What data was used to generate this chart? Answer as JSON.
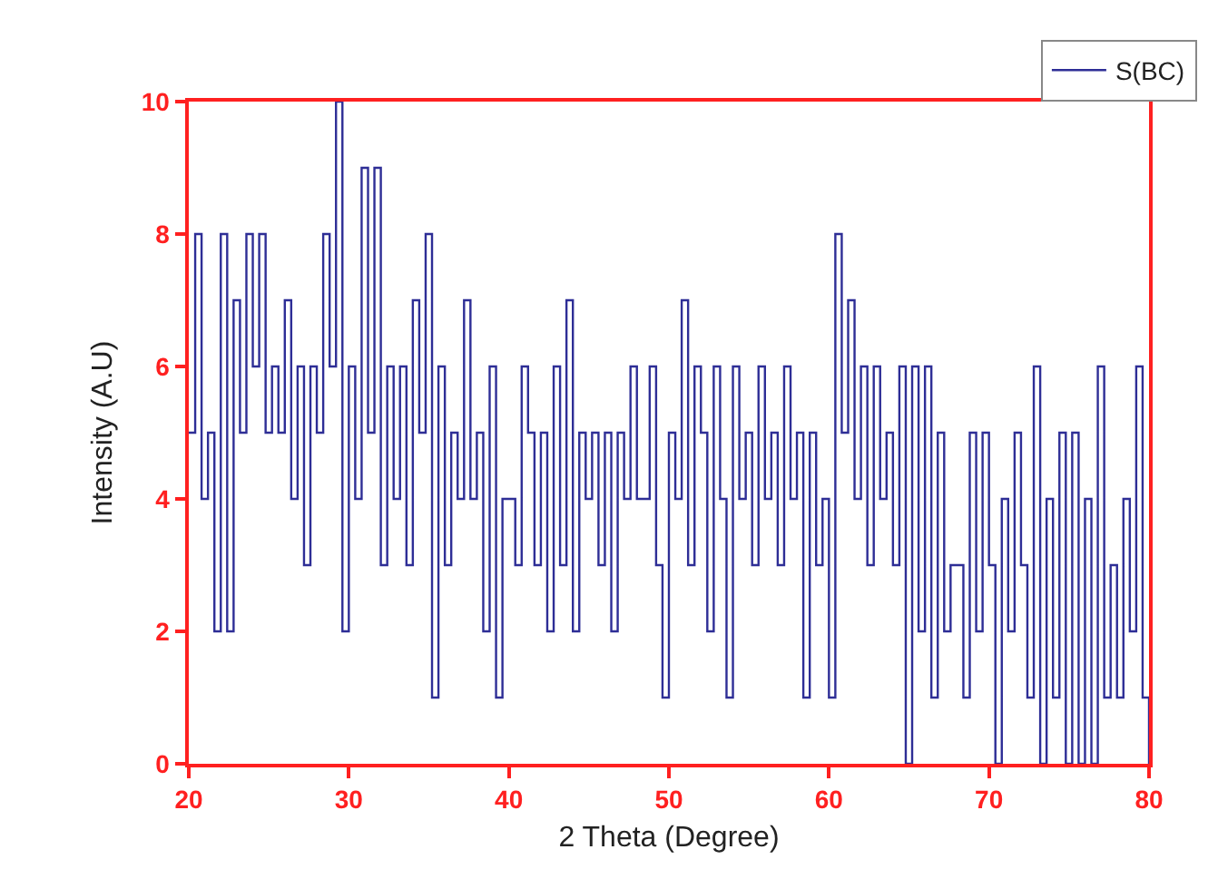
{
  "chart_data": {
    "type": "step",
    "xlabel": "2 Theta (Degree)",
    "ylabel": "Intensity (A.U)",
    "x": [
      20.0,
      20.4,
      20.8,
      21.2,
      21.6,
      22.0,
      22.4,
      22.8,
      23.2,
      23.6,
      24.0,
      24.4,
      24.8,
      25.2,
      25.6,
      26.0,
      26.4,
      26.8,
      27.2,
      27.6,
      28.0,
      28.4,
      28.8,
      29.2,
      29.6,
      30.0,
      30.4,
      30.8,
      31.2,
      31.6,
      32.0,
      32.4,
      32.8,
      33.2,
      33.6,
      34.0,
      34.4,
      34.8,
      35.2,
      35.6,
      36.0,
      36.4,
      36.8,
      37.2,
      37.6,
      38.0,
      38.4,
      38.8,
      39.2,
      39.6,
      40.0,
      40.4,
      40.8,
      41.2,
      41.6,
      42.0,
      42.4,
      42.8,
      43.2,
      43.6,
      44.0,
      44.4,
      44.8,
      45.2,
      45.6,
      46.0,
      46.4,
      46.8,
      47.2,
      47.6,
      48.0,
      48.4,
      48.8,
      49.2,
      49.6,
      50.0,
      50.4,
      50.8,
      51.2,
      51.6,
      52.0,
      52.4,
      52.8,
      53.2,
      53.6,
      54.0,
      54.4,
      54.8,
      55.2,
      55.6,
      56.0,
      56.4,
      56.8,
      57.2,
      57.6,
      58.0,
      58.4,
      58.8,
      59.2,
      59.6,
      60.0,
      60.4,
      60.8,
      61.2,
      61.6,
      62.0,
      62.4,
      62.8,
      63.2,
      63.6,
      64.0,
      64.4,
      64.8,
      65.2,
      65.6,
      66.0,
      66.4,
      66.8,
      67.2,
      67.6,
      68.0,
      68.4,
      68.8,
      69.2,
      69.6,
      70.0,
      70.4,
      70.8,
      71.2,
      71.6,
      72.0,
      72.4,
      72.8,
      73.2,
      73.6,
      74.0,
      74.4,
      74.8,
      75.2,
      75.6,
      76.0,
      76.4,
      76.8,
      77.2,
      77.6,
      78.0,
      78.4,
      78.8,
      79.2,
      79.6,
      80.0
    ],
    "series": [
      {
        "name": "S(BC)",
        "color": "#2e2e96",
        "values": [
          5,
          8,
          4,
          5,
          2,
          8,
          2,
          7,
          5,
          8,
          6,
          8,
          5,
          6,
          5,
          7,
          4,
          6,
          3,
          6,
          5,
          8,
          6,
          10,
          2,
          6,
          4,
          9,
          5,
          9,
          3,
          6,
          4,
          6,
          3,
          7,
          5,
          8,
          1,
          6,
          3,
          5,
          4,
          7,
          4,
          5,
          2,
          6,
          1,
          4,
          4,
          3,
          6,
          5,
          3,
          5,
          2,
          6,
          3,
          7,
          2,
          5,
          4,
          5,
          3,
          5,
          2,
          5,
          4,
          6,
          4,
          4,
          6,
          3,
          1,
          5,
          4,
          7,
          3,
          6,
          5,
          2,
          6,
          4,
          1,
          6,
          4,
          5,
          3,
          6,
          4,
          5,
          3,
          6,
          4,
          5,
          1,
          5,
          3,
          4,
          1,
          8,
          5,
          7,
          4,
          6,
          3,
          6,
          4,
          5,
          3,
          6,
          0,
          6,
          2,
          6,
          1,
          5,
          2,
          3,
          3,
          1,
          5,
          2,
          5,
          3,
          0,
          4,
          2,
          5,
          3,
          1,
          6,
          0,
          4,
          1,
          5,
          0,
          5,
          0,
          4,
          0,
          6,
          1,
          3,
          1,
          4,
          2,
          6,
          1,
          0
        ]
      }
    ],
    "xlim": [
      20,
      80
    ],
    "xticks": [
      20,
      30,
      40,
      50,
      60,
      70,
      80
    ],
    "ylim": [
      0,
      10
    ],
    "yticks": [
      0,
      2,
      4,
      6,
      8,
      10
    ],
    "grid": false,
    "legend": "top right",
    "marker": "none",
    "line_style": "solid"
  }
}
